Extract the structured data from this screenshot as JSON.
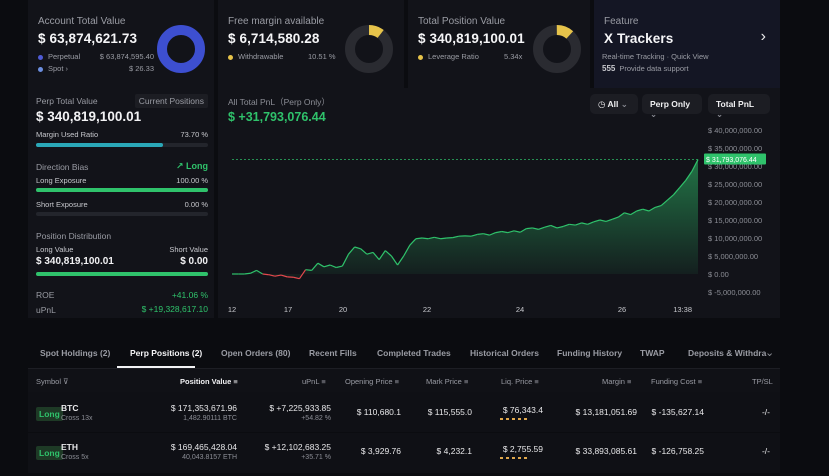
{
  "cards": {
    "account": {
      "title": "Account Total Value",
      "value": "$ 63,874,621.73",
      "rows": [
        {
          "label": "Perpetual",
          "value": "$ 63,874,595.40",
          "color": "#4f5bd5"
        },
        {
          "label": "Spot",
          "value": "$ 26.33",
          "color": "#6c8fe0"
        }
      ]
    },
    "margin": {
      "title": "Free margin available",
      "value": "$ 6,714,580.28",
      "row_label": "Withdrawable",
      "row_value": "10.51 %",
      "row_color": "#e6c34a",
      "withdrawable_fraction": 0.1051
    },
    "position": {
      "title": "Total Position Value",
      "value": "$ 340,819,100.01",
      "row_label": "Leverage Ratio",
      "row_value": "5.34x",
      "row_color": "#e6c34a"
    },
    "feature": {
      "title": "Feature",
      "name": "X Trackers",
      "line1": "Real-time Tracking · Quick View",
      "line2": "Provide data support",
      "logo": "555"
    }
  },
  "left": {
    "perp_label": "Perp Total Value",
    "current_positions": "Current Positions",
    "perp_value": "$ 340,819,100.01",
    "margin_used_label": "Margin Used Ratio",
    "margin_used_value": "73.70 %",
    "margin_used_fraction": 0.737,
    "direction_label": "Direction Bias",
    "direction_value": "Long",
    "long_exposure_label": "Long Exposure",
    "long_exposure_value": "100.00 %",
    "long_fraction": 1.0,
    "short_exposure_label": "Short Exposure",
    "short_exposure_value": "0.00 %",
    "position_dist_label": "Position Distribution",
    "long_value_label": "Long Value",
    "short_value_label": "Short Value",
    "long_value": "$ 340,819,100.01",
    "short_value": "$ 0.00",
    "roe_label": "ROE",
    "roe_value": "+41.06 %",
    "upnl_label": "uPnL",
    "upnl_value": "$ +19,328,617.10"
  },
  "chart_header": {
    "label": "All Total PnL（Perp Only）",
    "value": "$ +31,793,076.44",
    "filter_all": "All",
    "filter_perp": "Perp Only",
    "filter_pnl": "Total PnL",
    "last_label": "$ 31,793,076.44"
  },
  "chart_data": {
    "type": "area",
    "x_ticks": [
      "12",
      "17",
      "20",
      "22",
      "24",
      "26",
      "13:38"
    ],
    "y_ticks": [
      "$ 40,000,000.00",
      "$ 35,000,000.00",
      "$ 30,000,000.00",
      "$ 25,000,000.00",
      "$ 20,000,000.00",
      "$ 15,000,000.00",
      "$ 10,000,000.00",
      "$ 5,000,000.00",
      "$ 0.00",
      "$ -5,000,000.00"
    ],
    "ylim": [
      -5000000,
      40000000
    ],
    "values": [
      0,
      0,
      0,
      200000,
      1000000,
      0,
      -200000,
      -600000,
      -300000,
      -800000,
      -900000,
      -1300000,
      1200000,
      1000000,
      3000000,
      2000000,
      2500000,
      1800000,
      2200000,
      5500000,
      7500000,
      7000000,
      5500000,
      6000000,
      4000000,
      6500000,
      5000000,
      2500000,
      5000000,
      8000000,
      9800000,
      10000000,
      9800000,
      10200000,
      9800000,
      10000000,
      10100000,
      10500000,
      10600000,
      10500000,
      11000000,
      11200000,
      10800000,
      11500000,
      11800000,
      11500000,
      12000000,
      11600000,
      12600000,
      12800000,
      12400000,
      13000000,
      13500000,
      12800000,
      13200000,
      13800000,
      13600000,
      14200000,
      13800000,
      14500000,
      15000000,
      14600000,
      15200000,
      15800000,
      17000000,
      16500000,
      17500000,
      18000000,
      17500000,
      18500000,
      19000000,
      20500000,
      22000000,
      24000000,
      26000000,
      28500000,
      31793076
    ],
    "reference_line": 31793076.44,
    "colors": {
      "up": "#2fc26b",
      "down": "#e5484d"
    }
  },
  "tabs": [
    "Spot Holdings (2)",
    "Perp Positions (2)",
    "Open Orders (80)",
    "Recent Fills",
    "Completed Trades",
    "Historical Orders",
    "Funding History",
    "TWAP",
    "Deposits & Withdra"
  ],
  "table": {
    "headers": [
      "Symbol",
      "Position Value",
      "uPnL",
      "Opening Price",
      "Mark Price",
      "Liq. Price",
      "Margin",
      "Funding Cost",
      "TP/SL"
    ],
    "rows": [
      {
        "side": "Long",
        "symbol": "BTC",
        "mode": "Cross 13x",
        "pos_value": "$ 171,353,671.96",
        "pos_qty": "1,482.90111 BTC",
        "upnl": "$ +7,225,933.85",
        "upnl_pct": "+54.82 %",
        "open": "$ 110,680.1",
        "mark": "$ 115,555.0",
        "liq": "$ 76,343.4",
        "margin": "$ 13,181,051.69",
        "funding": "$ -135,627.14",
        "tpsl": "-/-"
      },
      {
        "side": "Long",
        "symbol": "ETH",
        "mode": "Cross 5x",
        "pos_value": "$ 169,465,428.04",
        "pos_qty": "40,043.8157 ETH",
        "upnl": "$ +12,102,683.25",
        "upnl_pct": "+35.71 %",
        "open": "$ 3,929.76",
        "mark": "$ 4,232.1",
        "liq": "$ 2,755.59",
        "margin": "$ 33,893,085.61",
        "funding": "$ -126,758.25",
        "tpsl": "-/-"
      }
    ]
  }
}
